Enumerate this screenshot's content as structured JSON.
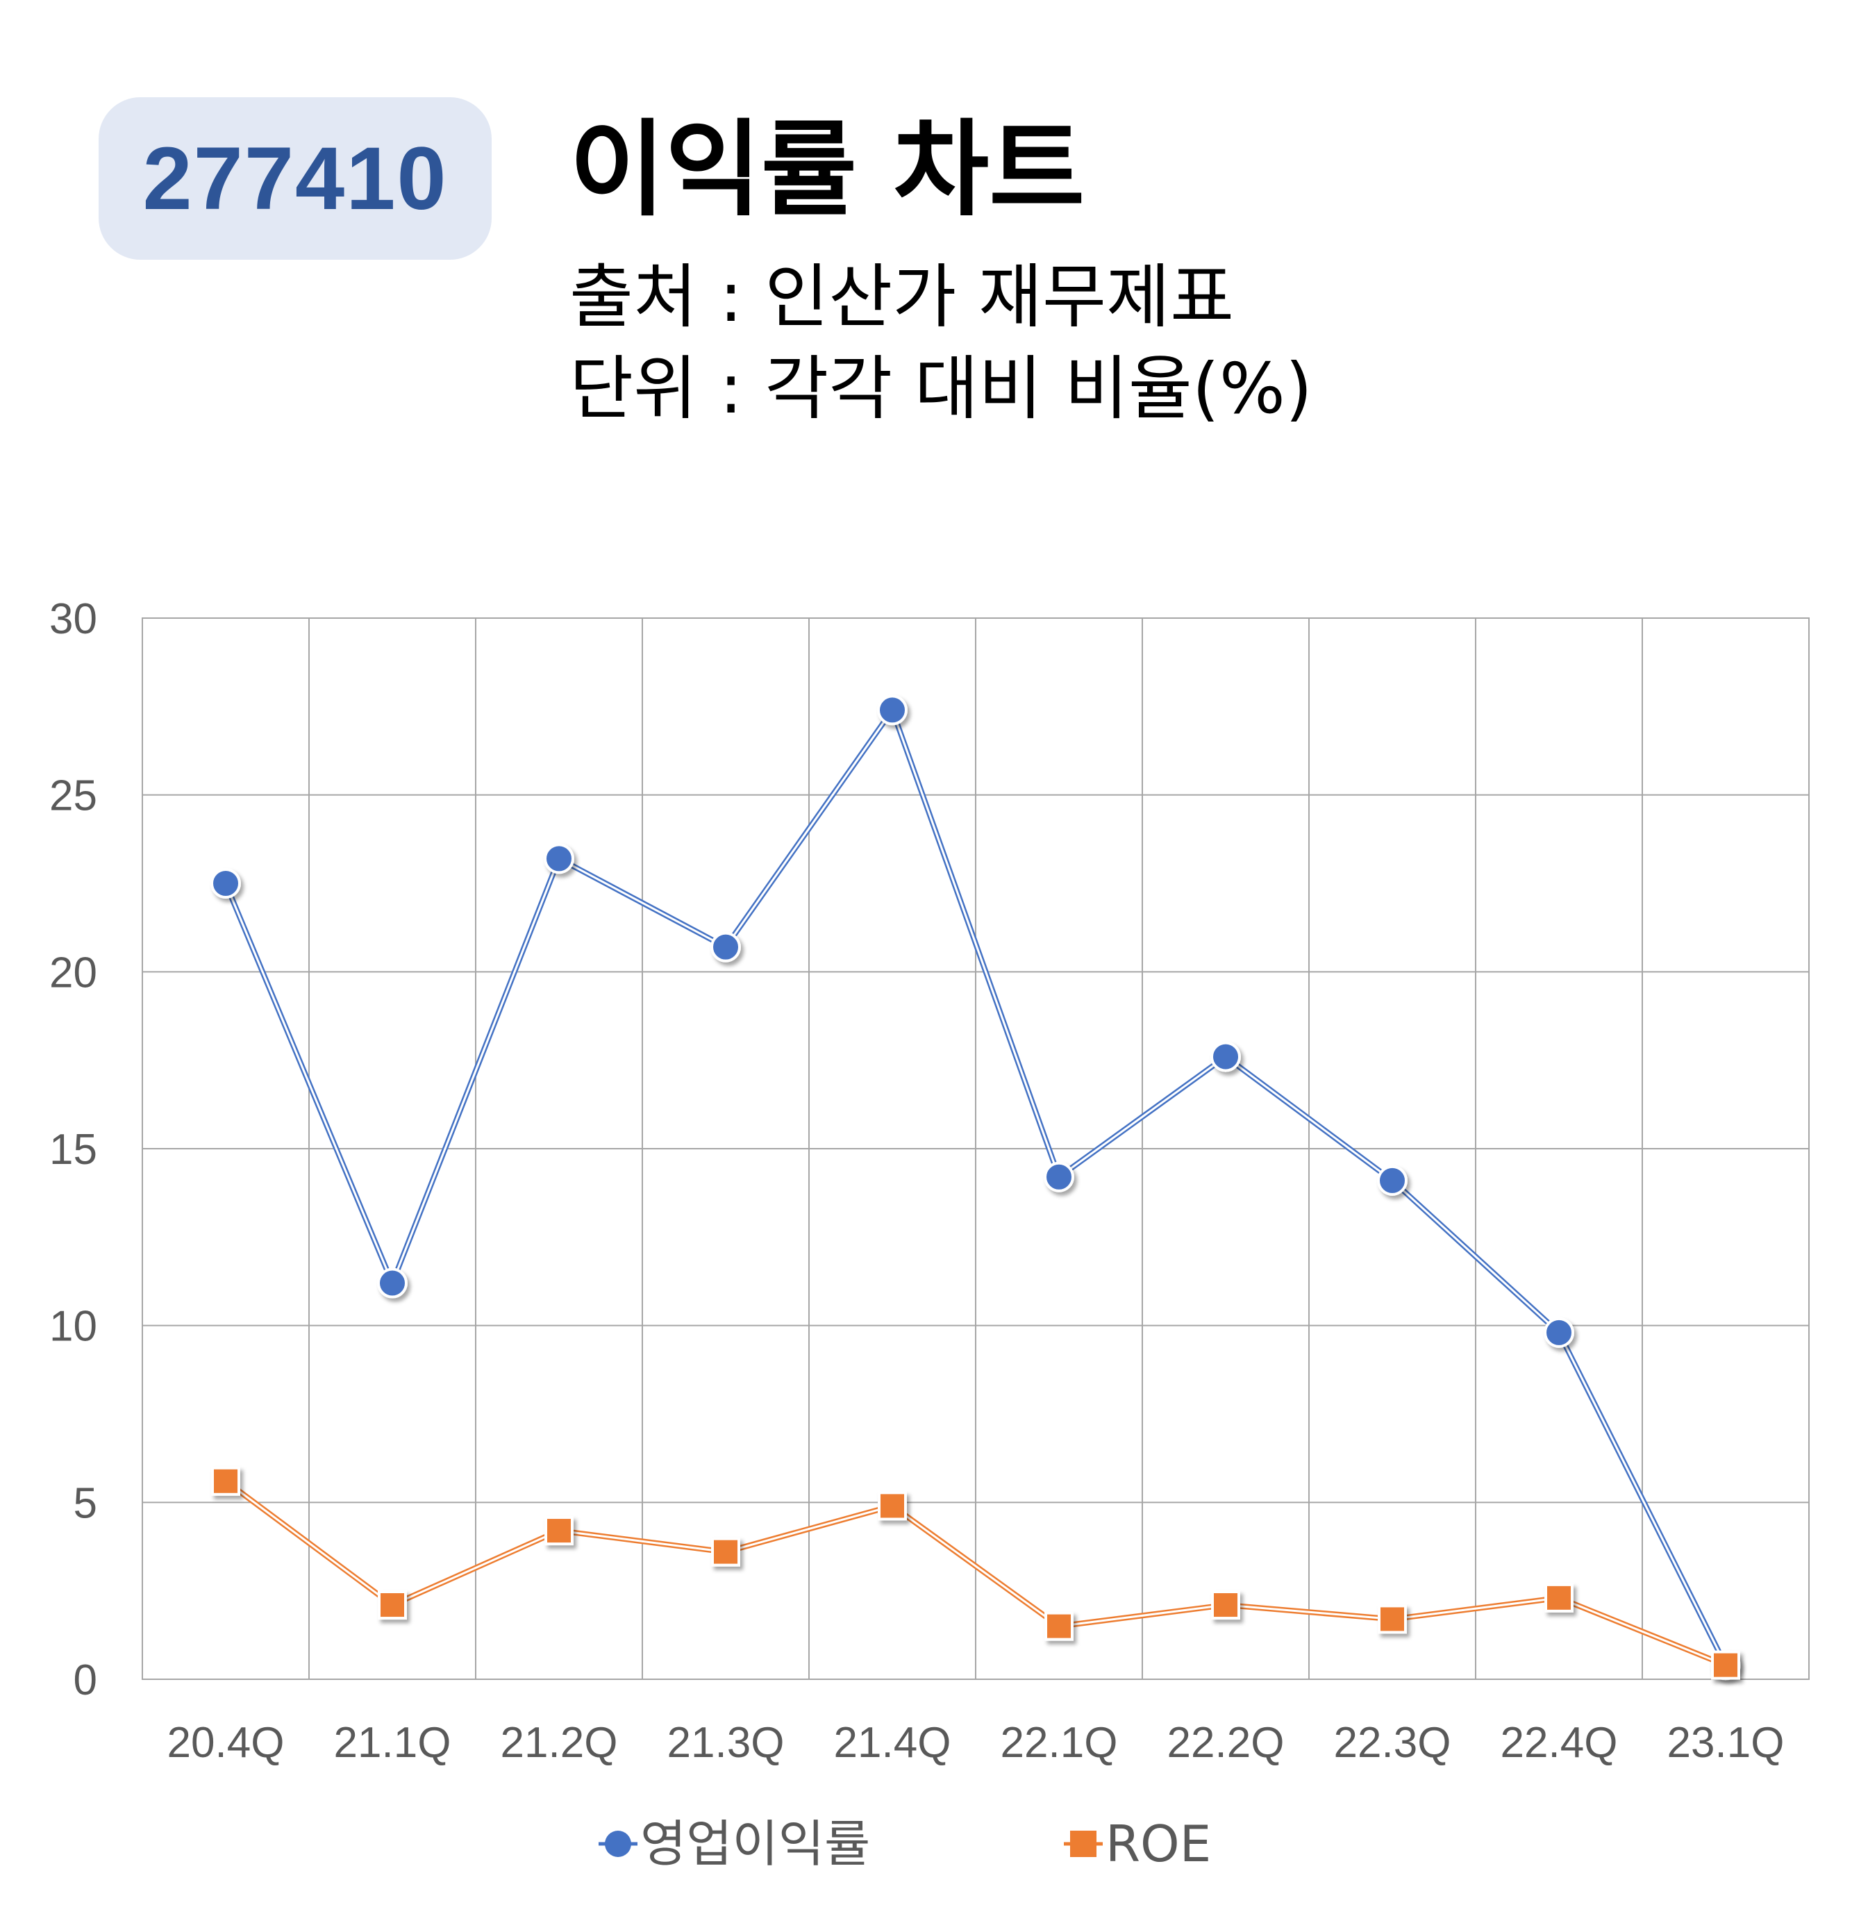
{
  "header": {
    "code": "277410",
    "title": "이익률 차트",
    "source_line": "출처 : 인산가 재무제표",
    "unit_line": "단위 : 각각 대비 비율(%)"
  },
  "chart_data": {
    "type": "line",
    "categories": [
      "20.4Q",
      "21.1Q",
      "21.2Q",
      "21.3Q",
      "21.4Q",
      "22.1Q",
      "22.2Q",
      "22.3Q",
      "22.4Q",
      "23.1Q"
    ],
    "series": [
      {
        "name": "영업이익률",
        "marker": "circle",
        "color": "#4472c4",
        "values": [
          22.5,
          11.2,
          23.2,
          20.7,
          27.4,
          14.2,
          17.6,
          14.1,
          9.8,
          0.4
        ]
      },
      {
        "name": "ROE",
        "marker": "square",
        "color": "#ed7d31",
        "values": [
          5.6,
          2.1,
          4.2,
          3.6,
          4.9,
          1.5,
          2.1,
          1.7,
          2.3,
          0.4
        ]
      }
    ],
    "yticks": [
      "0",
      "5",
      "10",
      "15",
      "20",
      "25",
      "30"
    ],
    "ylim": [
      0,
      30
    ],
    "grid": true,
    "legend_position": "bottom"
  }
}
